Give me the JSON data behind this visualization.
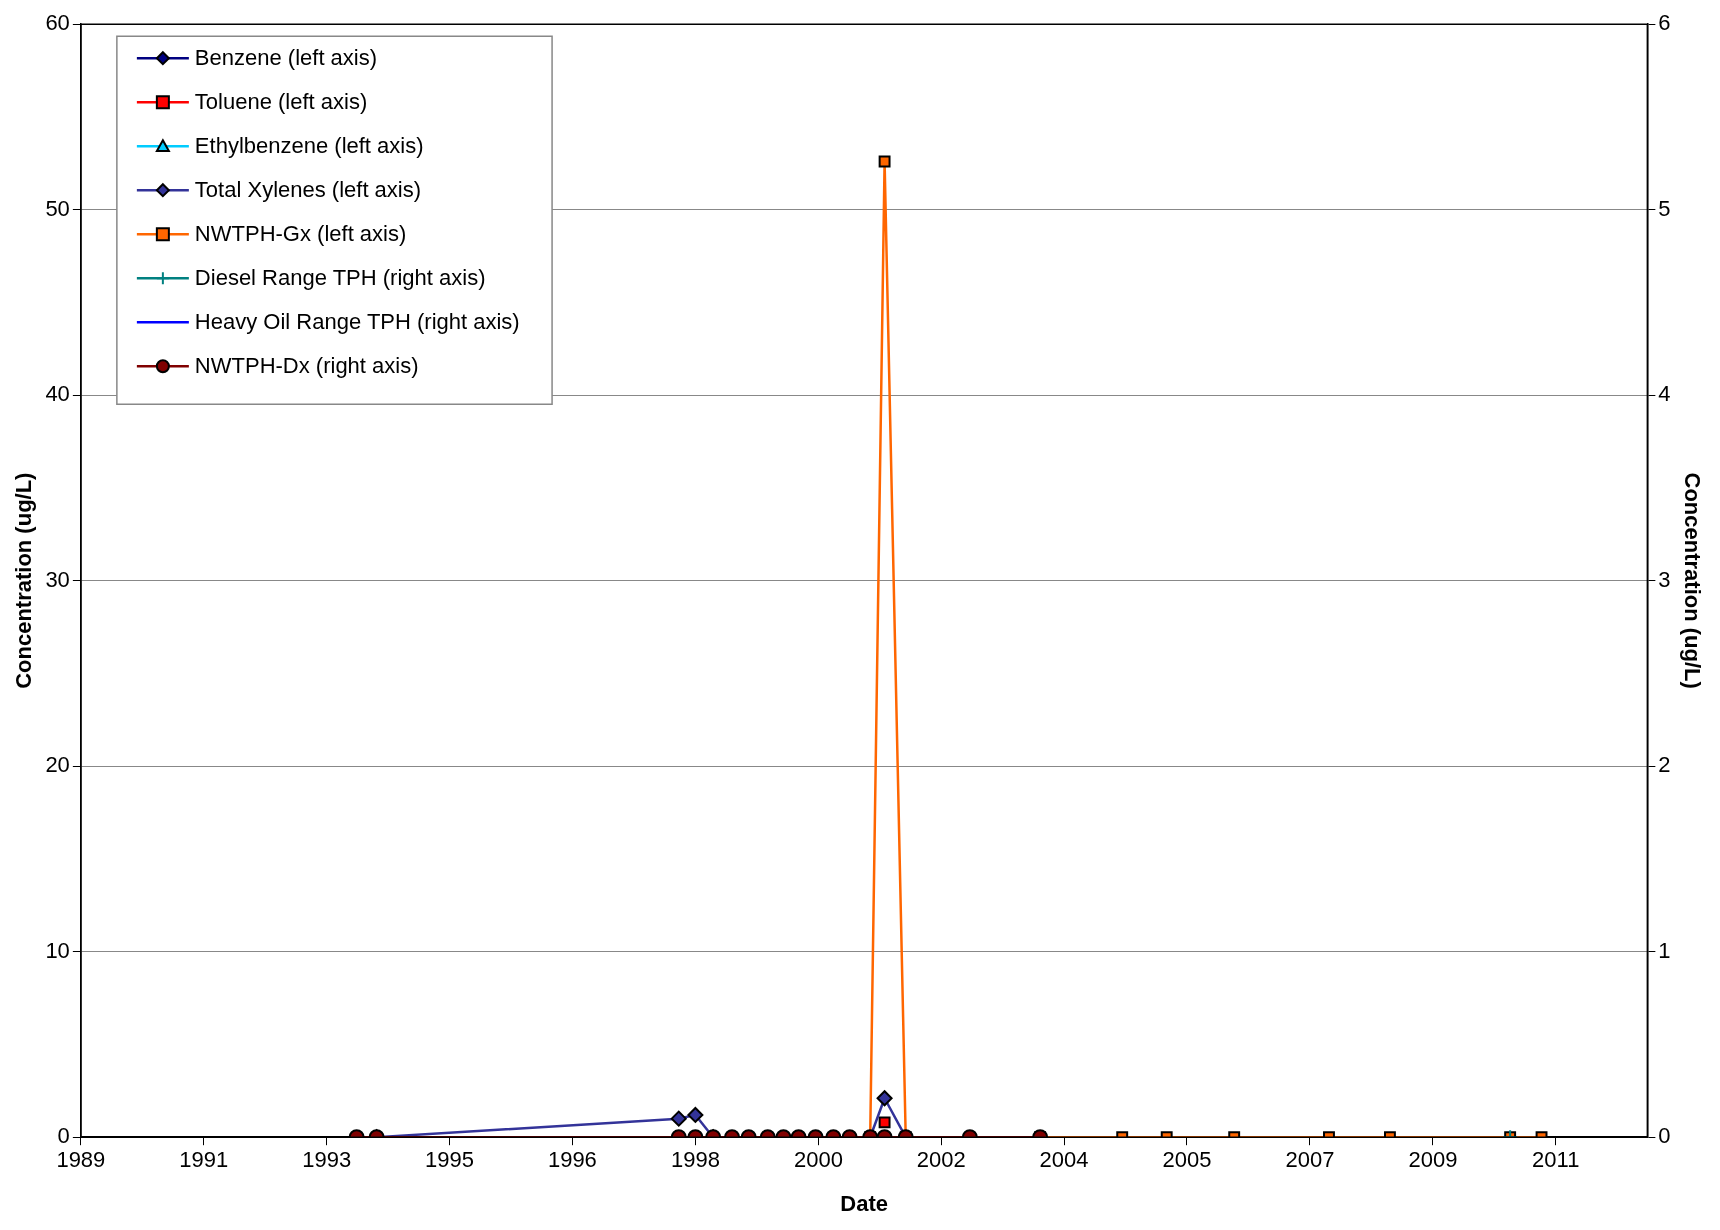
{
  "chart_data": {
    "type": "line",
    "xlabel": "Date",
    "ylabel": "Concentration (ug/L)",
    "y2label": "Concentration (ug/L)",
    "x": [
      "1993-09-27",
      "1994-01-12",
      "1998-06-16",
      "1998-09-13",
      "1998-12-17",
      "1999-03-28",
      "1999-06-25",
      "1999-10-05",
      "1999-12-28",
      "2000-03-18",
      "2000-06-17",
      "2000-09-20",
      "2000-12-16",
      "2001-04-05",
      "2001-06-21",
      "2001-10-12",
      "2002-09-20",
      "2003-10-01"
    ],
    "series": [
      {
        "name": "Benzene (left axis)",
        "color": "#000080",
        "marker": "diamond",
        "values": [
          null,
          null,
          null,
          null,
          null,
          null,
          null,
          null,
          null,
          null,
          null,
          null,
          null,
          null,
          null,
          null,
          null,
          null
        ]
      },
      {
        "name": "Toluene (left axis)",
        "color": "#ff0000",
        "marker": "square",
        "values": [
          null,
          null,
          null,
          null,
          null,
          null,
          null,
          null,
          null,
          null,
          null,
          null,
          null,
          null,
          0.8,
          null,
          null,
          null
        ]
      },
      {
        "name": "Ethylbenzene (left axis)",
        "color": "#00ccff",
        "marker": "triangle",
        "values": [
          null,
          null,
          null,
          null,
          null,
          null,
          null,
          null,
          null,
          null,
          null,
          null,
          null,
          null,
          null,
          null,
          null,
          null
        ]
      },
      {
        "name": "Total Xylenes (left axis)",
        "color": "#333399",
        "marker": "diamond",
        "values": [
          null,
          0,
          1.0,
          1.2,
          0,
          null,
          null,
          null,
          null,
          null,
          null,
          null,
          null,
          0,
          2.1,
          0,
          null,
          null
        ]
      },
      {
        "name": "NWTPH-Gx (left axis)",
        "color": "#ff6600",
        "marker": "square",
        "x": [
          "2001-04-05",
          "2001-06-21",
          "2001-10-12",
          "2002-09-20",
          "2003-10-01",
          "2004-12-13",
          "2005-08-08",
          "2006-08-04",
          "2007-12-24",
          "2008-11-14",
          "2010-08-19",
          "2011-02-03"
        ],
        "values": [
          0,
          52.6,
          0,
          null,
          0,
          0,
          0,
          0,
          0,
          0,
          0,
          0
        ]
      },
      {
        "name": "Diesel Range TPH (right axis)",
        "color": "#008080",
        "marker": "cross",
        "axis": "y2",
        "x": [
          "2010-08-19"
        ],
        "values": [
          0
        ]
      },
      {
        "name": "Heavy Oil Range TPH (right axis)",
        "color": "#0000ff",
        "marker": "none",
        "axis": "y2",
        "values": [
          null,
          null,
          null,
          null,
          null,
          null,
          null,
          null,
          null,
          null,
          null,
          null,
          null,
          null,
          null,
          null,
          null,
          null
        ]
      },
      {
        "name": "NWTPH-Dx (right axis)",
        "color": "#800000",
        "marker": "circle",
        "axis": "y2",
        "values": [
          0,
          0,
          0,
          0,
          0,
          0,
          0,
          0,
          0,
          0,
          0,
          0,
          0,
          0,
          0,
          0,
          0,
          0
        ]
      }
    ],
    "xlim": [
      "1989-09-13",
      "2012-08-22"
    ],
    "xticks": [
      {
        "value": "1989-09-13",
        "label": "1989"
      },
      {
        "value": "1991-07-02",
        "label": "1991"
      },
      {
        "value": "1993-04-20",
        "label": "1993"
      },
      {
        "value": "1995-02-06",
        "label": "1995"
      },
      {
        "value": "1996-11-24",
        "label": "1996"
      },
      {
        "value": "1998-09-13",
        "label": "1998"
      },
      {
        "value": "2000-07-02",
        "label": "2000"
      },
      {
        "value": "2002-04-20",
        "label": "2002"
      },
      {
        "value": "2004-02-06",
        "label": "2004"
      },
      {
        "value": "2005-11-24",
        "label": "2005"
      },
      {
        "value": "2007-09-13",
        "label": "2007"
      },
      {
        "value": "2009-07-02",
        "label": "2009"
      },
      {
        "value": "2011-04-20",
        "label": "2011"
      }
    ],
    "ylim": [
      0,
      60
    ],
    "yticks": [
      0,
      10,
      20,
      30,
      40,
      50,
      60
    ],
    "y2lim": [
      0,
      6
    ],
    "y2ticks": [
      0,
      1,
      2,
      3,
      4,
      5,
      6
    ],
    "grid": "y",
    "legend": "top left",
    "line_style": "solid"
  }
}
